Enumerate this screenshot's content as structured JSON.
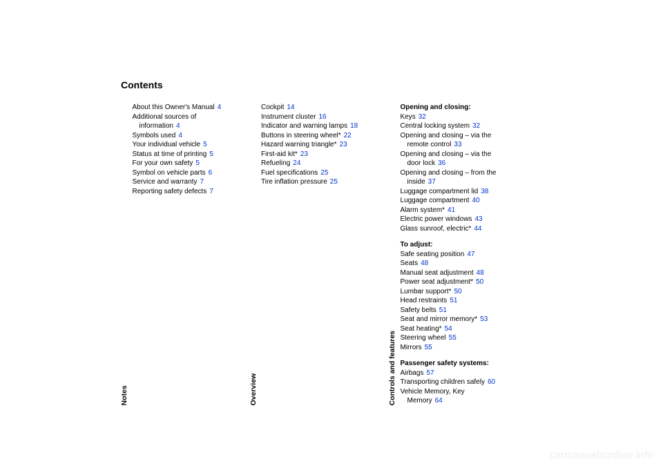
{
  "title": "Contents",
  "page_color": "#0033cc",
  "text_color": "#000000",
  "watermark": "carmanualsonline.info",
  "columns": [
    {
      "label": "Notes",
      "blocks": [
        {
          "entries": [
            {
              "label": "About this Owner's Manual",
              "page": "4"
            },
            {
              "label_lines": [
                "Additional sources of",
                "information"
              ],
              "page": "4"
            },
            {
              "label": "Symbols used",
              "page": "4"
            },
            {
              "label": "Your individual vehicle",
              "page": "5"
            },
            {
              "label": "Status at time of printing",
              "page": "5"
            },
            {
              "label": "For your own safety",
              "page": "5"
            },
            {
              "label": "Symbol on vehicle parts",
              "page": "6"
            },
            {
              "label": "Service and warranty",
              "page": "7"
            },
            {
              "label": "Reporting safety defects",
              "page": "7"
            }
          ]
        }
      ]
    },
    {
      "label": "Overview",
      "blocks": [
        {
          "entries": [
            {
              "label": "Cockpit",
              "page": "14"
            },
            {
              "label": "Instrument cluster",
              "page": "16"
            },
            {
              "label": "Indicator and warning lamps",
              "page": "18"
            },
            {
              "label": "Buttons in steering wheel*",
              "page": "22"
            },
            {
              "label": "Hazard warning triangle*",
              "page": "23"
            },
            {
              "label": "First-aid kit*",
              "page": "23"
            },
            {
              "label": "Refueling",
              "page": "24"
            },
            {
              "label": "Fuel specifications",
              "page": "25"
            },
            {
              "label": "Tire inflation pressure",
              "page": "25"
            }
          ]
        }
      ]
    },
    {
      "label": "Controls and features",
      "blocks": [
        {
          "heading": "Opening and closing:",
          "entries": [
            {
              "label": "Keys",
              "page": "32"
            },
            {
              "label": "Central locking system",
              "page": "32"
            },
            {
              "label_lines": [
                "Opening and closing – via the",
                "remote control"
              ],
              "page": "33"
            },
            {
              "label_lines": [
                "Opening and closing – via the",
                "door lock"
              ],
              "page": "36"
            },
            {
              "label_lines": [
                "Opening and closing – from the",
                "inside"
              ],
              "page": "37"
            },
            {
              "label": "Luggage compartment lid",
              "page": "38"
            },
            {
              "label": "Luggage compartment",
              "page": "40"
            },
            {
              "label": "Alarm system*",
              "page": "41"
            },
            {
              "label": "Electric power windows",
              "page": "43"
            },
            {
              "label": "Glass sunroof, electric*",
              "page": "44"
            }
          ]
        },
        {
          "heading": "To adjust:",
          "entries": [
            {
              "label": "Safe seating position",
              "page": "47"
            },
            {
              "label": "Seats",
              "page": "48"
            },
            {
              "label": "Manual seat adjustment",
              "page": "48"
            },
            {
              "label": "Power seat adjustment*",
              "page": "50"
            },
            {
              "label": "Lumbar support*",
              "page": "50"
            },
            {
              "label": "Head restraints",
              "page": "51"
            },
            {
              "label": "Safety belts",
              "page": "51"
            },
            {
              "label": "Seat and mirror memory*",
              "page": "53"
            },
            {
              "label": "Seat heating*",
              "page": "54"
            },
            {
              "label": "Steering wheel",
              "page": "55"
            },
            {
              "label": "Mirrors",
              "page": "55"
            }
          ]
        },
        {
          "heading": "Passenger safety systems:",
          "entries": [
            {
              "label": "Airbags",
              "page": "57"
            },
            {
              "label": "Transporting children safely",
              "page": "60"
            },
            {
              "label_lines": [
                "Vehicle Memory, Key",
                "Memory"
              ],
              "page": "64"
            }
          ]
        }
      ]
    }
  ]
}
